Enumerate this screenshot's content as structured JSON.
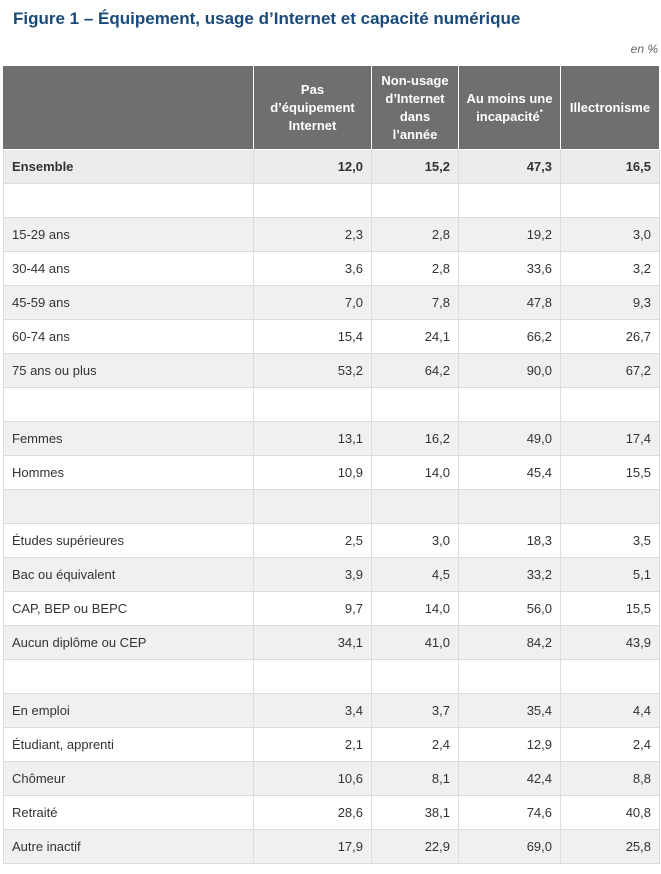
{
  "title": "Figure 1 – Équipement, usage d’Internet et capacité numérique",
  "unit": "en %",
  "columns": {
    "c1": "Pas d’équipement Internet",
    "c2": "Non-usage d’Internet dans l’année",
    "c3": "Au moins une incapacité",
    "c3_mark": "*",
    "c4": "Illectronisme"
  },
  "rows": {
    "ensemble": {
      "label": "Ensemble",
      "v": [
        "12,0",
        "15,2",
        "47,3",
        "16,5"
      ]
    },
    "r15_29": {
      "label": "15-29 ans",
      "v": [
        "2,3",
        "2,8",
        "19,2",
        "3,0"
      ]
    },
    "r30_44": {
      "label": "30-44 ans",
      "v": [
        "3,6",
        "2,8",
        "33,6",
        "3,2"
      ]
    },
    "r45_59": {
      "label": "45-59 ans",
      "v": [
        "7,0",
        "7,8",
        "47,8",
        "9,3"
      ]
    },
    "r60_74": {
      "label": "60-74 ans",
      "v": [
        "15,4",
        "24,1",
        "66,2",
        "26,7"
      ]
    },
    "r75": {
      "label": "75 ans ou plus",
      "v": [
        "53,2",
        "64,2",
        "90,0",
        "67,2"
      ]
    },
    "femmes": {
      "label": "Femmes",
      "v": [
        "13,1",
        "16,2",
        "49,0",
        "17,4"
      ]
    },
    "hommes": {
      "label": "Hommes",
      "v": [
        "10,9",
        "14,0",
        "45,4",
        "15,5"
      ]
    },
    "etudes_sup": {
      "label": "Études supérieures",
      "v": [
        "2,5",
        "3,0",
        "18,3",
        "3,5"
      ]
    },
    "bac": {
      "label": "Bac ou équivalent",
      "v": [
        "3,9",
        "4,5",
        "33,2",
        "5,1"
      ]
    },
    "cap": {
      "label": "CAP, BEP ou BEPC",
      "v": [
        "9,7",
        "14,0",
        "56,0",
        "15,5"
      ]
    },
    "aucun": {
      "label": "Aucun diplôme ou CEP",
      "v": [
        "34,1",
        "41,0",
        "84,2",
        "43,9"
      ]
    },
    "emploi": {
      "label": "En emploi",
      "v": [
        "3,4",
        "3,7",
        "35,4",
        "4,4"
      ]
    },
    "etudiant": {
      "label": "Étudiant, apprenti",
      "v": [
        "2,1",
        "2,4",
        "12,9",
        "2,4"
      ]
    },
    "chomeur": {
      "label": "Chômeur",
      "v": [
        "10,6",
        "8,1",
        "42,4",
        "8,8"
      ]
    },
    "retraite": {
      "label": "Retraité",
      "v": [
        "28,6",
        "38,1",
        "74,6",
        "40,8"
      ]
    },
    "inactif": {
      "label": "Autre inactif",
      "v": [
        "17,9",
        "22,9",
        "69,0",
        "25,8"
      ]
    }
  }
}
